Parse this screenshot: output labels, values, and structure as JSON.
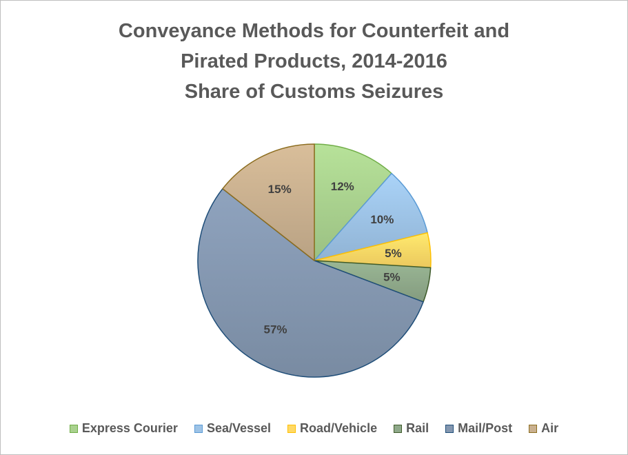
{
  "chart_data": {
    "type": "pie",
    "title_lines": [
      "Conveyance Methods for Counterfeit and",
      "Pirated Products, 2014-2016",
      "Share of Customs Seizures"
    ],
    "categories": [
      "Express Courier",
      "Sea/Vessel",
      "Road/Vehicle",
      "Rail",
      "Mail/Post",
      "Air"
    ],
    "values": [
      12,
      10,
      5,
      5,
      57,
      15
    ],
    "labels": [
      "12%",
      "10%",
      "5%",
      "5%",
      "57%",
      "15%"
    ],
    "colors": {
      "fill": [
        "#a9d18e",
        "#9dc3e6",
        "#ffd966",
        "#8fa98a",
        "#8497b0",
        "#c9b08f"
      ],
      "stroke": [
        "#70ad47",
        "#5b9bd5",
        "#ffc000",
        "#3e5a2a",
        "#1f4e79",
        "#8c6d1f"
      ]
    },
    "legend_position": "bottom"
  }
}
